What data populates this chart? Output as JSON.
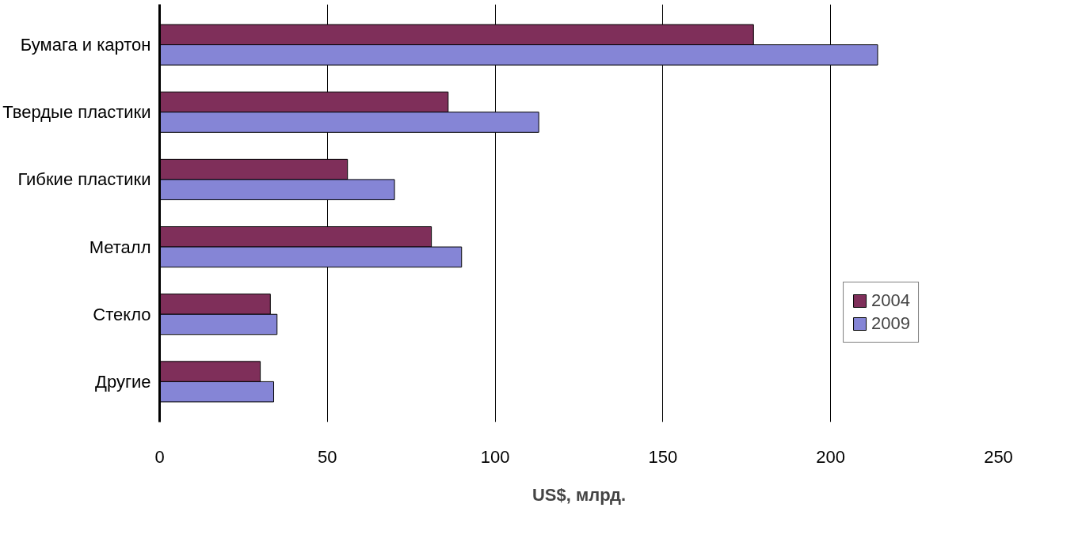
{
  "chart_data": {
    "type": "bar",
    "orientation": "horizontal",
    "xlabel": "US$, млрд.",
    "categories": [
      "Бумага и картон",
      "Твердые пластики",
      "Гибкие пластики",
      "Металл",
      "Стекло",
      "Другие"
    ],
    "series": [
      {
        "name": "2004",
        "color": "#7f2f5a",
        "values": [
          177,
          86,
          56,
          81,
          33,
          30
        ]
      },
      {
        "name": "2009",
        "color": "#8585d6",
        "values": [
          214,
          113,
          70,
          90,
          35,
          34
        ]
      }
    ],
    "xlim": [
      0,
      250
    ],
    "xticks": [
      0,
      50,
      100,
      150,
      200,
      250
    ],
    "grid": "x",
    "legend": "bottom right"
  }
}
